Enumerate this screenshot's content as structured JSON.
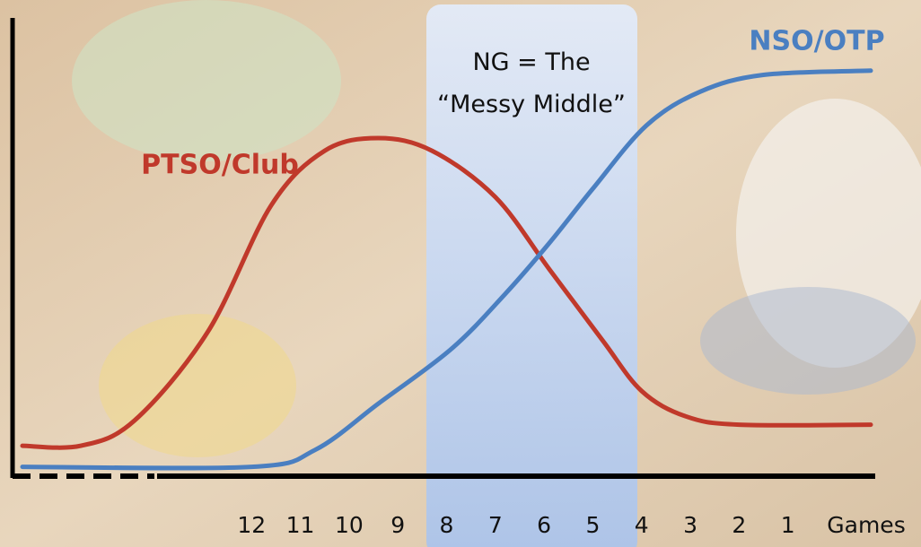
{
  "chart_data": {
    "type": "line",
    "x_label": "Games",
    "xlim": [
      16.7,
      -0.7
    ],
    "xticks": [
      12,
      11,
      10,
      9,
      8,
      7,
      6,
      5,
      4,
      3,
      2,
      1
    ],
    "ylim": [
      0,
      100
    ],
    "annotation": [
      "NG = The",
      "“Messy Middle”"
    ],
    "series": [
      {
        "name": "PTSO/Club",
        "color": "#c0392b",
        "x": [
          16.7,
          15.5,
          14.4,
          12.9,
          11.6,
          10.5,
          9.4,
          8.3,
          7.0,
          5.9,
          4.8,
          4.0,
          3.1,
          2.0,
          -0.7
        ],
        "values": [
          7,
          7,
          13,
          34,
          64,
          77,
          80,
          77,
          66,
          49,
          32,
          20,
          14,
          12,
          12
        ]
      },
      {
        "name": "NSO/OTP",
        "color": "#4a7fc1",
        "x": [
          16.7,
          12,
          10.7,
          9.4,
          7.9,
          6.8,
          5.9,
          5.0,
          3.9,
          2.8,
          1.5,
          -0.7
        ],
        "values": [
          2,
          2,
          6,
          17,
          30,
          43,
          55,
          68,
          83,
          91,
          95,
          96
        ]
      }
    ]
  }
}
